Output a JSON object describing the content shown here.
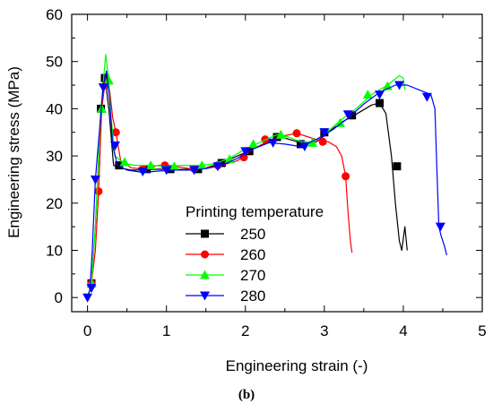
{
  "panel_label": "(b)",
  "chart_data": {
    "type": "line",
    "title": "",
    "xlabel": "Engineering strain (-)",
    "ylabel": "Engineering stress (MPa)",
    "xlim": [
      -0.2,
      5
    ],
    "ylim": [
      -3,
      60
    ],
    "xticks": [
      0,
      1,
      2,
      3,
      4,
      5
    ],
    "yticks": [
      0,
      10,
      20,
      30,
      40,
      50,
      60
    ],
    "grid": false,
    "legend": {
      "title": "Printing temperature",
      "placement": "center"
    },
    "series": [
      {
        "name": "250",
        "color": "#000000",
        "marker": "square",
        "line": [
          [
            0,
            0
          ],
          [
            0.05,
            3
          ],
          [
            0.1,
            15
          ],
          [
            0.17,
            40
          ],
          [
            0.22,
            47
          ],
          [
            0.27,
            40
          ],
          [
            0.33,
            28
          ],
          [
            0.4,
            27.5
          ],
          [
            0.55,
            27
          ],
          [
            0.7,
            27
          ],
          [
            0.9,
            27.2
          ],
          [
            1.1,
            27.1
          ],
          [
            1.3,
            27.2
          ],
          [
            1.5,
            27.5
          ],
          [
            1.7,
            28.5
          ],
          [
            1.9,
            30
          ],
          [
            2.1,
            31.5
          ],
          [
            2.3,
            33
          ],
          [
            2.45,
            34
          ],
          [
            2.6,
            33.3
          ],
          [
            2.75,
            32.5
          ],
          [
            2.9,
            33
          ],
          [
            3.05,
            35
          ],
          [
            3.2,
            37
          ],
          [
            3.4,
            38.8
          ],
          [
            3.6,
            40.8
          ],
          [
            3.7,
            41.2
          ],
          [
            3.78,
            39
          ],
          [
            3.85,
            30
          ],
          [
            3.9,
            20
          ],
          [
            3.95,
            12
          ],
          [
            3.98,
            10
          ],
          [
            4.02,
            15
          ],
          [
            4.05,
            10
          ]
        ],
        "markers": [
          [
            0.05,
            3
          ],
          [
            0.17,
            40
          ],
          [
            0.22,
            46.5
          ],
          [
            0.4,
            28
          ],
          [
            0.75,
            27.2
          ],
          [
            1.05,
            27.2
          ],
          [
            1.4,
            27.2
          ],
          [
            1.7,
            28.5
          ],
          [
            2.05,
            31
          ],
          [
            2.4,
            34
          ],
          [
            2.7,
            32.5
          ],
          [
            3.0,
            35
          ],
          [
            3.35,
            38.6
          ],
          [
            3.7,
            41.2
          ],
          [
            3.92,
            27.8
          ]
        ]
      },
      {
        "name": "260",
        "color": "#ff0000",
        "marker": "circle",
        "line": [
          [
            0,
            0
          ],
          [
            0.05,
            3
          ],
          [
            0.1,
            10
          ],
          [
            0.14,
            22
          ],
          [
            0.18,
            40
          ],
          [
            0.23,
            46.5
          ],
          [
            0.28,
            44
          ],
          [
            0.32,
            38
          ],
          [
            0.36,
            35
          ],
          [
            0.42,
            29
          ],
          [
            0.55,
            27.5
          ],
          [
            0.7,
            27.2
          ],
          [
            0.9,
            28
          ],
          [
            1.1,
            27.8
          ],
          [
            1.3,
            27.3
          ],
          [
            1.5,
            27.5
          ],
          [
            1.7,
            28
          ],
          [
            1.9,
            29
          ],
          [
            2.1,
            31.5
          ],
          [
            2.3,
            33.2
          ],
          [
            2.5,
            34.3
          ],
          [
            2.65,
            34.8
          ],
          [
            2.8,
            34
          ],
          [
            2.95,
            33.2
          ],
          [
            3.05,
            33
          ],
          [
            3.15,
            32
          ],
          [
            3.22,
            30
          ],
          [
            3.27,
            25.7
          ],
          [
            3.3,
            18
          ],
          [
            3.33,
            12
          ],
          [
            3.35,
            9.5
          ]
        ],
        "markers": [
          [
            0.05,
            3
          ],
          [
            0.14,
            22.5
          ],
          [
            0.23,
            45
          ],
          [
            0.36,
            35
          ],
          [
            0.7,
            27.2
          ],
          [
            0.98,
            28
          ],
          [
            1.35,
            27.3
          ],
          [
            1.65,
            28
          ],
          [
            1.98,
            29.7
          ],
          [
            2.25,
            33.5
          ],
          [
            2.65,
            34.8
          ],
          [
            2.98,
            33
          ],
          [
            3.27,
            25.7
          ]
        ]
      },
      {
        "name": "270",
        "color": "#00ff00",
        "marker": "triangle-up",
        "line": [
          [
            0,
            0
          ],
          [
            0.05,
            3
          ],
          [
            0.1,
            15
          ],
          [
            0.17,
            40
          ],
          [
            0.23,
            51.5
          ],
          [
            0.27,
            46
          ],
          [
            0.3,
            38
          ],
          [
            0.35,
            30
          ],
          [
            0.45,
            28.5
          ],
          [
            0.6,
            28
          ],
          [
            0.8,
            28
          ],
          [
            1.0,
            27.8
          ],
          [
            1.2,
            28
          ],
          [
            1.4,
            28
          ],
          [
            1.6,
            28.3
          ],
          [
            1.8,
            29.5
          ],
          [
            2.0,
            31.5
          ],
          [
            2.2,
            33
          ],
          [
            2.4,
            34.5
          ],
          [
            2.55,
            34
          ],
          [
            2.7,
            33
          ],
          [
            2.85,
            33
          ],
          [
            3.0,
            34.5
          ],
          [
            3.2,
            37.5
          ],
          [
            3.4,
            40
          ],
          [
            3.6,
            43
          ],
          [
            3.8,
            45
          ],
          [
            3.95,
            47
          ],
          [
            4.0,
            46.5
          ],
          [
            4.02,
            44
          ]
        ],
        "markers": [
          [
            0.05,
            3
          ],
          [
            0.18,
            40
          ],
          [
            0.27,
            46
          ],
          [
            0.47,
            28.7
          ],
          [
            0.8,
            28
          ],
          [
            1.1,
            27.8
          ],
          [
            1.45,
            28
          ],
          [
            1.8,
            29.3
          ],
          [
            2.1,
            32.5
          ],
          [
            2.45,
            34.5
          ],
          [
            2.85,
            32.8
          ],
          [
            3.2,
            37
          ],
          [
            3.55,
            43
          ],
          [
            3.8,
            44.8
          ]
        ]
      },
      {
        "name": "280",
        "color": "#0000ff",
        "marker": "triangle-down",
        "line": [
          [
            0,
            0
          ],
          [
            0.03,
            1.5
          ],
          [
            0.06,
            10
          ],
          [
            0.1,
            25
          ],
          [
            0.15,
            35
          ],
          [
            0.2,
            45
          ],
          [
            0.24,
            48
          ],
          [
            0.28,
            42
          ],
          [
            0.32,
            32
          ],
          [
            0.38,
            28
          ],
          [
            0.5,
            27
          ],
          [
            0.7,
            26.5
          ],
          [
            0.9,
            26.8
          ],
          [
            1.1,
            27
          ],
          [
            1.3,
            27
          ],
          [
            1.5,
            27.3
          ],
          [
            1.7,
            28
          ],
          [
            1.9,
            29.5
          ],
          [
            2.1,
            31.5
          ],
          [
            2.3,
            32.8
          ],
          [
            2.5,
            32.5
          ],
          [
            2.7,
            32
          ],
          [
            2.9,
            33.5
          ],
          [
            3.1,
            35.5
          ],
          [
            3.3,
            38
          ],
          [
            3.5,
            41
          ],
          [
            3.7,
            43.5
          ],
          [
            3.9,
            45
          ],
          [
            4.05,
            45
          ],
          [
            4.2,
            44
          ],
          [
            4.35,
            43
          ],
          [
            4.4,
            40
          ],
          [
            4.42,
            30
          ],
          [
            4.45,
            15
          ],
          [
            4.48,
            13
          ],
          [
            4.52,
            11
          ],
          [
            4.55,
            9
          ]
        ],
        "markers": [
          [
            0,
            0
          ],
          [
            0.05,
            2
          ],
          [
            0.1,
            25
          ],
          [
            0.2,
            44.5
          ],
          [
            0.35,
            32.2
          ],
          [
            0.7,
            26.7
          ],
          [
            1.0,
            27
          ],
          [
            1.35,
            27
          ],
          [
            1.65,
            27.8
          ],
          [
            2.0,
            31
          ],
          [
            2.35,
            32.8
          ],
          [
            2.75,
            32
          ],
          [
            3.0,
            35
          ],
          [
            3.3,
            38.8
          ],
          [
            3.7,
            43
          ],
          [
            3.95,
            45
          ],
          [
            4.3,
            42.5
          ],
          [
            4.47,
            15
          ]
        ]
      }
    ]
  }
}
